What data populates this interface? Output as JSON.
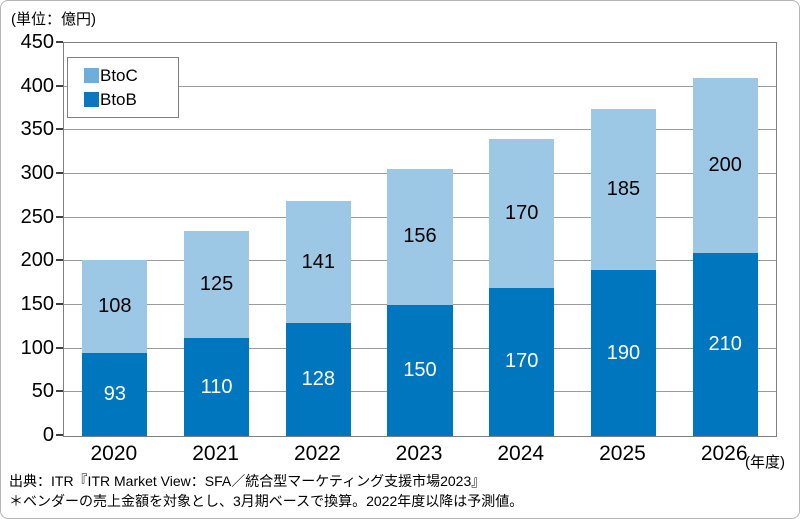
{
  "unit_label": "(単位：億円)",
  "year_axis_label": "(年度)",
  "legend": {
    "items": [
      {
        "label": "BtoC",
        "swatch_color": "#6fAEDB"
      },
      {
        "label": "BtoB",
        "swatch_color": "#0b77c0"
      }
    ]
  },
  "footer": {
    "source_line": "出典：ITR『ITR Market View：SFA／統合型マーケティング支援市場2023』",
    "note_line": "＊ベンダーの売上金額を対象とし、3月期ベースで換算。2022年度以降は予測値。"
  },
  "colors": {
    "btob_bar": "#0076be",
    "btoc_bar": "#9cc7e5",
    "gridline": "#9b9b9b",
    "plot_border": "#7f7f7f",
    "btob_label_text": "#ffffff",
    "btoc_label_text": "#000000"
  },
  "chart_data": {
    "type": "bar",
    "stacked": true,
    "title": "",
    "xlabel": "年度",
    "ylabel": "億円",
    "categories": [
      "2020",
      "2021",
      "2022",
      "2023",
      "2024",
      "2025",
      "2026"
    ],
    "series": [
      {
        "name": "BtoB",
        "color": "#0076be",
        "label_color": "#ffffff",
        "values": [
          93,
          110,
          128,
          150,
          170,
          190,
          210
        ]
      },
      {
        "name": "BtoC",
        "color": "#9cc7e5",
        "label_color": "#000000",
        "values": [
          108,
          125,
          141,
          156,
          170,
          185,
          200
        ]
      }
    ],
    "totals": [
      201,
      235,
      269,
      306,
      340,
      375,
      410
    ],
    "ylim": [
      0,
      450
    ],
    "yticks": [
      0,
      50,
      100,
      150,
      200,
      250,
      300,
      350,
      400,
      450
    ],
    "grid": true,
    "legend_position": "top-left"
  }
}
